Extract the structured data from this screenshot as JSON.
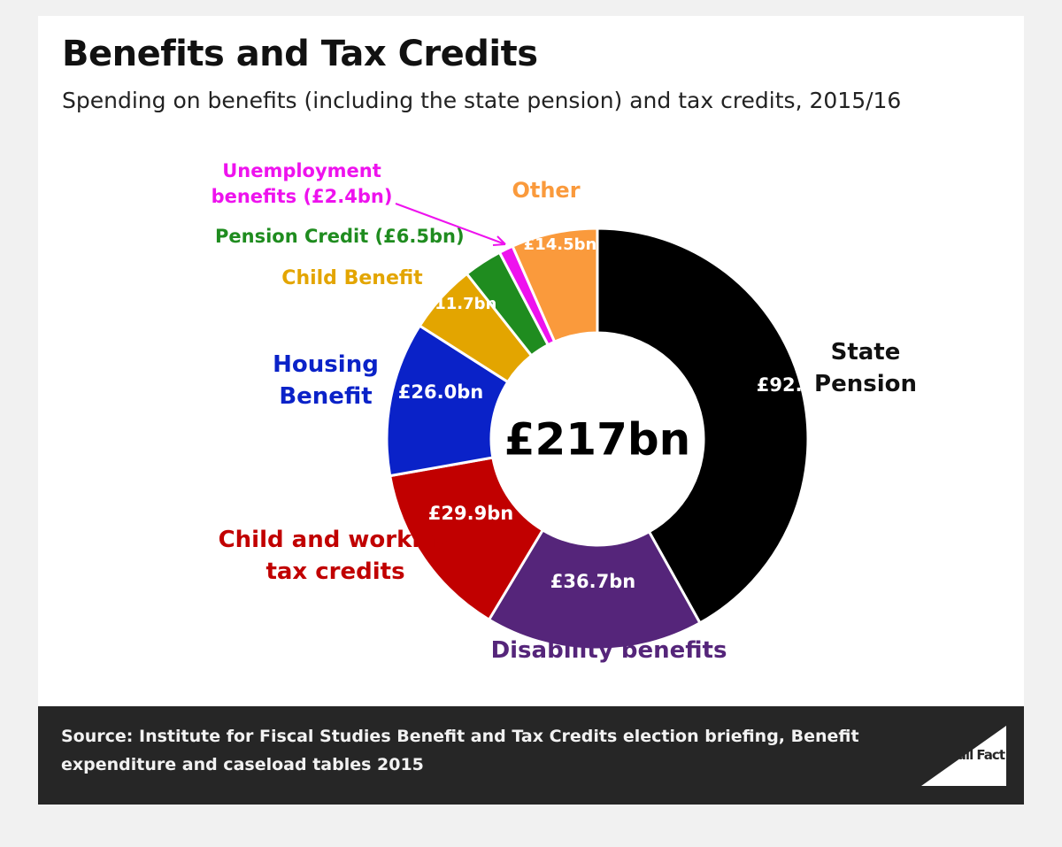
{
  "title": "Benefits and Tax Credits",
  "subtitle": "Spending on benefits (including the state pension) and tax credits, 2015/16",
  "center_label": "£217bn",
  "source_label": "Source:",
  "source_text": "Institute for Fiscal Studies Benefit and Tax Credits election briefing, Benefit expenditure and caseload tables 2015",
  "logo_text": "Full Fact",
  "chart_data": {
    "type": "pie",
    "donut": true,
    "total": 217,
    "unit": "£bn",
    "start_angle": "12 o'clock",
    "direction": "clockwise",
    "slices": [
      {
        "name": "State Pension",
        "label": "State\nPension",
        "value": 92.1,
        "value_label": "£92.1",
        "color": "#000000",
        "label_color": "#111111"
      },
      {
        "name": "Disability benefits",
        "label": "Disability benefits",
        "value": 36.7,
        "value_label": "£36.7bn",
        "color": "#55257a",
        "label_color": "#55257a"
      },
      {
        "name": "Child and working tax credits",
        "label": "Child and working\ntax credits",
        "value": 29.9,
        "value_label": "£29.9bn",
        "color": "#c10000",
        "label_color": "#c10000"
      },
      {
        "name": "Housing Benefit",
        "label": "Housing\nBenefit",
        "value": 26.0,
        "value_label": "£26.0bn",
        "color": "#0a22c8",
        "label_color": "#0a22c8"
      },
      {
        "name": "Child Benefit",
        "label": "Child Benefit",
        "value": 11.7,
        "value_label": "£11.7bn",
        "color": "#e3a500",
        "label_color": "#e3a500"
      },
      {
        "name": "Pension Credit",
        "label": "Pension Credit (£6.5bn)",
        "value": 6.5,
        "value_label": "",
        "color": "#1f8c1f",
        "label_color": "#1f8c1f"
      },
      {
        "name": "Unemployment benefits",
        "label": "Unemployment\nbenefits (£2.4bn)",
        "value": 2.4,
        "value_label": "",
        "color": "#ee12ee",
        "label_color": "#ee12ee"
      },
      {
        "name": "Other",
        "label": "Other",
        "value": 14.5,
        "value_label": "£14.5bn",
        "color": "#fa9a3c",
        "label_color": "#fa9a3c"
      }
    ]
  }
}
